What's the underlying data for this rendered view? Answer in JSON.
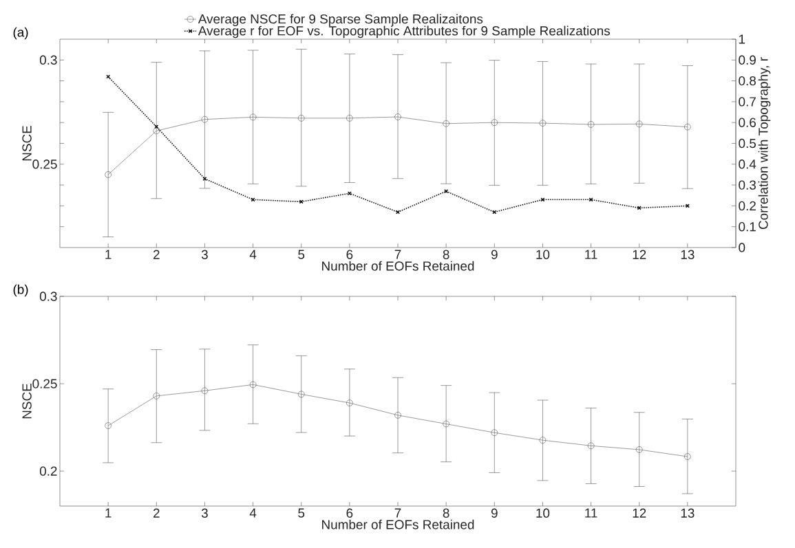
{
  "chart_data": [
    {
      "type": "line",
      "x": [
        1,
        2,
        3,
        4,
        5,
        6,
        7,
        8,
        9,
        10,
        11,
        12,
        13
      ],
      "xlim": [
        0,
        14
      ],
      "xticks": [
        1,
        2,
        3,
        4,
        5,
        6,
        7,
        8,
        9,
        10,
        11,
        12,
        13
      ],
      "ylim": [
        0.21,
        0.31
      ],
      "yticks": [
        {
          "value": 0.22,
          "label": null
        },
        {
          "value": 0.23,
          "label": null
        },
        {
          "value": 0.24,
          "label": null
        },
        {
          "value": 0.25,
          "label": "0.25"
        },
        {
          "value": 0.26,
          "label": null
        },
        {
          "value": 0.27,
          "label": null
        },
        {
          "value": 0.28,
          "label": null
        },
        {
          "value": 0.29,
          "label": null
        },
        {
          "value": 0.3,
          "label": "0.3"
        }
      ],
      "y2lim": [
        0,
        1
      ],
      "y2ticks": [
        0,
        0.1,
        0.2,
        0.3,
        0.4,
        0.5,
        0.6,
        0.7,
        0.8,
        0.9,
        1
      ],
      "xlabel": "Number of EOFs Retained",
      "ylabel": "NSCE",
      "y2label": "Correlation with Topography, r",
      "legend": "top",
      "annotations": [
        "(a)"
      ],
      "series": [
        {
          "name": "Average NSCE for 9 Sparse Sample Realizaitons",
          "color": "#555555",
          "marker": "circle",
          "line_style": "solid",
          "values": [
            0.245,
            0.266,
            0.2715,
            0.2726,
            0.2721,
            0.2721,
            0.2727,
            0.2695,
            0.27,
            0.2697,
            0.2691,
            0.2693,
            0.2679
          ],
          "errors": [
            [
              0.2151,
              0.2749
            ],
            [
              0.2335,
              0.2989
            ],
            [
              0.2384,
              0.3044
            ],
            [
              0.2405,
              0.3047
            ],
            [
              0.2394,
              0.3052
            ],
            [
              0.2412,
              0.3029
            ],
            [
              0.2431,
              0.3026
            ],
            [
              0.2406,
              0.2987
            ],
            [
              0.2399,
              0.2999
            ],
            [
              0.2399,
              0.2993
            ],
            [
              0.2405,
              0.2981
            ],
            [
              0.2409,
              0.2981
            ],
            [
              0.2383,
              0.2973
            ]
          ]
        },
        {
          "name": "Average r for EOF vs. Topographic Attributes for 9 Sample Realizations",
          "color": "#111111",
          "marker": "cross",
          "line_style": "dotted",
          "axis": "y2",
          "values": [
            0.82,
            0.58,
            0.33,
            0.23,
            0.22,
            0.26,
            0.17,
            0.27,
            0.17,
            0.23,
            0.23,
            0.19,
            0.2
          ]
        }
      ]
    },
    {
      "type": "line",
      "x": [
        1,
        2,
        3,
        4,
        5,
        6,
        7,
        8,
        9,
        10,
        11,
        12,
        13
      ],
      "xlim": [
        0,
        14
      ],
      "xticks": [
        1,
        2,
        3,
        4,
        5,
        6,
        7,
        8,
        9,
        10,
        11,
        12,
        13
      ],
      "ylim": [
        0.18,
        0.3
      ],
      "yticks": [
        0.2,
        0.25,
        0.3
      ],
      "xlabel": "Number of EOFs Retained",
      "ylabel": "NSCE",
      "annotations": [
        "(b)"
      ],
      "series": [
        {
          "color": "#555555",
          "marker": "circle",
          "line_style": "solid",
          "values": [
            0.226,
            0.243,
            0.246,
            0.2495,
            0.244,
            0.239,
            0.232,
            0.227,
            0.222,
            0.2177,
            0.2145,
            0.2123,
            0.2083
          ],
          "errors": [
            [
              0.2048,
              0.247
            ],
            [
              0.2163,
              0.2695
            ],
            [
              0.2233,
              0.2698
            ],
            [
              0.2271,
              0.2722
            ],
            [
              0.2221,
              0.266
            ],
            [
              0.2201,
              0.2584
            ],
            [
              0.2104,
              0.2535
            ],
            [
              0.2053,
              0.249
            ],
            [
              0.1991,
              0.2449
            ],
            [
              0.1946,
              0.2406
            ],
            [
              0.1928,
              0.2361
            ],
            [
              0.1912,
              0.2336
            ],
            [
              0.1871,
              0.2298
            ]
          ]
        }
      ]
    }
  ]
}
